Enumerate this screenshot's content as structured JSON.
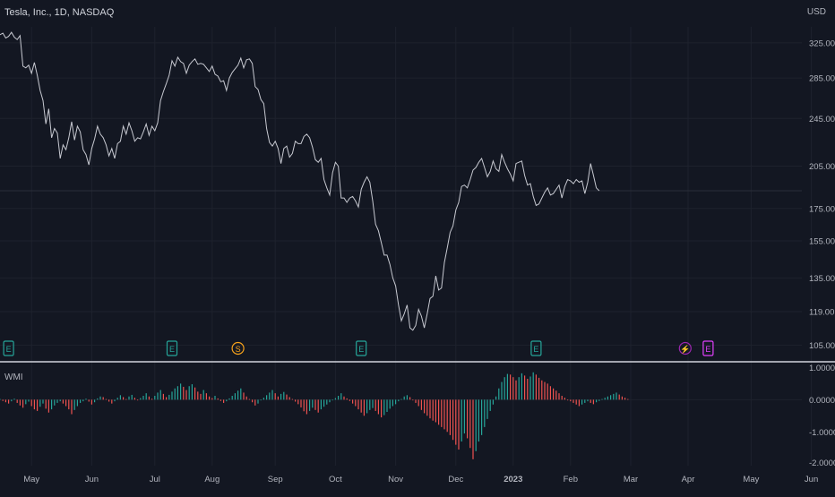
{
  "header": {
    "symbol_line": "Tesla, Inc., 1D, NASDAQ",
    "currency": "USD"
  },
  "indicator": {
    "name": "WMI"
  },
  "colors": {
    "background": "#131722",
    "price_line": "#c7c9d1",
    "bar_up": "#26a69a",
    "bar_down": "#ef5350",
    "axis_text": "#b2b5be",
    "grid": "#1e222d",
    "divider": "#d1d4dc",
    "earnings": "#26a69a",
    "dividend": "#f7a21b",
    "split": "#9c27b0",
    "earnings_future": "#e040fb"
  },
  "chart_data": [
    {
      "type": "line",
      "x_axis": {
        "tick_labels": [
          "May",
          "Jun",
          "Jul",
          "Aug",
          "Sep",
          "Oct",
          "Nov",
          "Dec",
          "2023",
          "Feb",
          "Mar",
          "Apr",
          "May",
          "Jun"
        ]
      },
      "y_axis": {
        "tick_labels": [
          "325.00",
          "285.00",
          "245.00",
          "205.00",
          "175.00",
          "155.00",
          "135.00",
          "119.00",
          "105.00"
        ],
        "scale": "log",
        "ylim": [
          100,
          345
        ]
      },
      "series": [
        {
          "values": [
            335,
            337,
            331,
            333,
            338,
            332,
            329,
            334,
            298,
            296,
            299,
            290,
            302,
            288,
            272,
            262,
            240,
            254,
            228,
            236,
            232,
            211,
            222,
            218,
            228,
            242,
            226,
            238,
            233,
            218,
            214,
            206,
            219,
            227,
            238,
            231,
            228,
            222,
            213,
            219,
            211,
            223,
            225,
            238,
            231,
            241,
            234,
            225,
            228,
            227,
            233,
            240,
            230,
            238,
            234,
            241,
            262,
            271,
            279,
            288,
            304,
            298,
            308,
            303,
            301,
            290,
            299,
            303,
            306,
            300,
            301,
            300,
            296,
            292,
            298,
            289,
            287,
            281,
            282,
            272,
            285,
            291,
            295,
            299,
            307,
            296,
            305,
            306,
            301,
            276,
            273,
            263,
            259,
            236,
            224,
            221,
            225,
            219,
            207,
            219,
            221,
            212,
            215,
            225,
            223,
            223,
            229,
            231,
            228,
            220,
            210,
            208,
            211,
            195,
            189,
            184,
            200,
            208,
            205,
            182,
            182,
            179,
            182,
            183,
            180,
            176,
            188,
            193,
            197,
            193,
            180,
            165,
            161,
            154,
            147,
            147,
            142,
            135,
            131,
            122,
            115,
            118,
            122,
            112,
            111,
            113,
            120,
            117,
            112,
            118,
            125,
            126,
            136,
            129,
            130,
            143,
            151,
            160,
            164,
            174,
            179,
            190,
            191,
            189,
            195,
            202,
            204,
            208,
            211,
            204,
            197,
            201,
            209,
            203,
            201,
            214,
            208,
            203,
            199,
            194,
            207,
            208,
            209,
            198,
            191,
            192,
            183,
            177,
            178,
            182,
            186,
            189,
            184,
            185,
            188,
            191,
            182,
            190,
            195,
            194,
            192,
            195,
            193,
            194,
            185,
            193,
            207,
            198,
            189,
            187
          ]
        }
      ],
      "markers": [
        {
          "label": "E",
          "kind": "earnings",
          "date_index": 3
        },
        {
          "label": "E",
          "kind": "earnings",
          "date_index": 60
        },
        {
          "label": "S",
          "kind": "split",
          "date_index": 83
        },
        {
          "label": "E",
          "kind": "earnings",
          "date_index": 126
        },
        {
          "label": "E",
          "kind": "earnings",
          "date_index": 187
        },
        {
          "label": "⚡",
          "kind": "upcoming",
          "date_index": 239
        },
        {
          "label": "E",
          "kind": "earnings_future",
          "date_index": 247
        }
      ]
    },
    {
      "type": "bar",
      "name": "WMI",
      "y_axis": {
        "tick_labels": [
          "1.0000",
          "0.0000",
          "-1.0000",
          "-2.0000"
        ],
        "ylim": [
          -2.05,
          1.15
        ]
      },
      "values": [
        0.02,
        -0.04,
        -0.08,
        -0.12,
        -0.05,
        0.03,
        -0.1,
        -0.18,
        -0.25,
        -0.14,
        -0.06,
        -0.2,
        -0.3,
        -0.35,
        -0.22,
        -0.12,
        -0.28,
        -0.4,
        -0.3,
        -0.18,
        -0.1,
        -0.05,
        -0.12,
        -0.2,
        -0.3,
        -0.45,
        -0.32,
        -0.2,
        -0.1,
        -0.05,
        0.03,
        -0.06,
        -0.15,
        -0.08,
        0.04,
        0.1,
        0.08,
        0.02,
        -0.06,
        -0.12,
        -0.05,
        0.06,
        0.14,
        0.08,
        0.02,
        0.1,
        0.15,
        0.06,
        -0.02,
        0.05,
        0.12,
        0.2,
        0.1,
        0.03,
        0.12,
        0.22,
        0.3,
        0.18,
        0.08,
        0.15,
        0.25,
        0.35,
        0.42,
        0.5,
        0.4,
        0.3,
        0.42,
        0.48,
        0.38,
        0.25,
        0.18,
        0.3,
        0.2,
        0.1,
        0.05,
        0.12,
        0.04,
        -0.04,
        -0.1,
        -0.05,
        0.04,
        0.12,
        0.2,
        0.28,
        0.35,
        0.22,
        0.1,
        0.02,
        -0.08,
        -0.18,
        -0.12,
        -0.02,
        0.06,
        0.14,
        0.22,
        0.3,
        0.2,
        0.1,
        0.18,
        0.24,
        0.16,
        0.08,
        0.02,
        -0.06,
        -0.14,
        -0.24,
        -0.36,
        -0.45,
        -0.35,
        -0.25,
        -0.32,
        -0.4,
        -0.3,
        -0.22,
        -0.15,
        -0.08,
        -0.02,
        0.05,
        0.12,
        0.2,
        0.1,
        0.04,
        -0.04,
        -0.12,
        -0.2,
        -0.3,
        -0.4,
        -0.5,
        -0.42,
        -0.32,
        -0.26,
        -0.35,
        -0.45,
        -0.55,
        -0.48,
        -0.38,
        -0.28,
        -0.2,
        -0.14,
        -0.05,
        0.02,
        0.1,
        0.14,
        0.08,
        -0.02,
        -0.1,
        -0.2,
        -0.32,
        -0.42,
        -0.5,
        -0.58,
        -0.65,
        -0.7,
        -0.78,
        -0.85,
        -0.92,
        -1.0,
        -1.1,
        -1.25,
        -1.4,
        -1.55,
        -1.3,
        -1.05,
        -1.2,
        -1.5,
        -1.85,
        -1.6,
        -1.3,
        -1.1,
        -0.85,
        -0.6,
        -0.35,
        -0.15,
        0.1,
        0.35,
        0.55,
        0.7,
        0.8,
        0.78,
        0.7,
        0.6,
        0.7,
        0.82,
        0.75,
        0.65,
        0.72,
        0.85,
        0.78,
        0.68,
        0.6,
        0.55,
        0.5,
        0.42,
        0.35,
        0.28,
        0.2,
        0.12,
        0.06,
        0.0,
        -0.05,
        -0.1,
        -0.15,
        -0.2,
        -0.15,
        -0.1,
        -0.05,
        -0.1,
        -0.14,
        -0.08,
        -0.04,
        0.02,
        0.06,
        0.1,
        0.14,
        0.18,
        0.22,
        0.16,
        0.1,
        0.06,
        0.02
      ]
    }
  ]
}
